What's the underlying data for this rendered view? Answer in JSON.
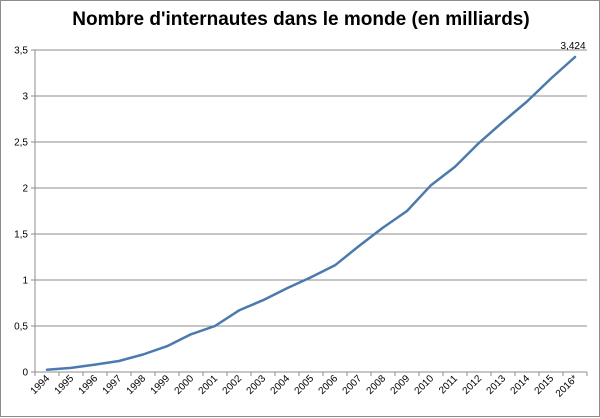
{
  "chart_data": {
    "type": "line",
    "title": "Nombre d'internautes dans le monde (en milliards)",
    "xlabel": "",
    "ylabel": "",
    "categories": [
      "1994",
      "1995",
      "1996",
      "1997",
      "1998",
      "1999",
      "2000",
      "2001",
      "2002",
      "2003",
      "2004",
      "2005",
      "2006",
      "2007",
      "2008",
      "2009",
      "2010",
      "2011",
      "2012",
      "2013",
      "2014",
      "2015",
      "2016*"
    ],
    "series": [
      {
        "values": [
          0.025,
          0.045,
          0.08,
          0.12,
          0.19,
          0.28,
          0.41,
          0.5,
          0.67,
          0.78,
          0.91,
          1.03,
          1.16,
          1.37,
          1.57,
          1.75,
          2.03,
          2.23,
          2.49,
          2.72,
          2.94,
          3.19,
          3.424
        ],
        "color": "#4a7ab0"
      }
    ],
    "ylim": [
      0,
      3.5
    ],
    "yticks": [
      "0",
      "0,5",
      "1",
      "1,5",
      "2",
      "2,5",
      "3",
      "3,5"
    ],
    "ytick_values": [
      0,
      0.5,
      1,
      1.5,
      2,
      2.5,
      3,
      3.5
    ],
    "grid": "horizontal",
    "legend": "none",
    "data_labels": [
      {
        "index": 22,
        "text": "3,424"
      }
    ]
  }
}
